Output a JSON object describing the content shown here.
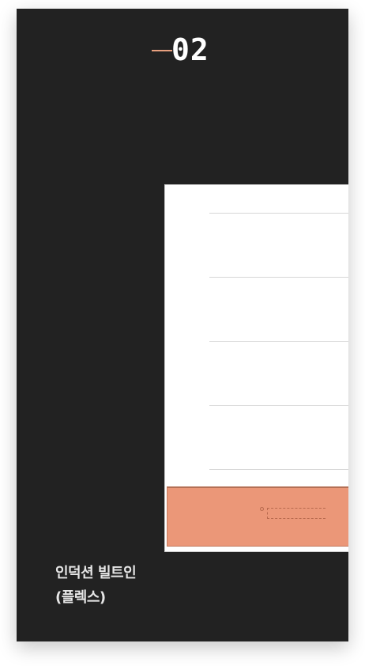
{
  "step": {
    "number": "02",
    "accent_color": "#e8a07f"
  },
  "product": {
    "name_line1": "인덕션 빌트인",
    "name_line2": "(플렉스)"
  },
  "colors": {
    "background": "#222222",
    "cooktop": "#eb9778",
    "text": "#e6e6e6"
  }
}
